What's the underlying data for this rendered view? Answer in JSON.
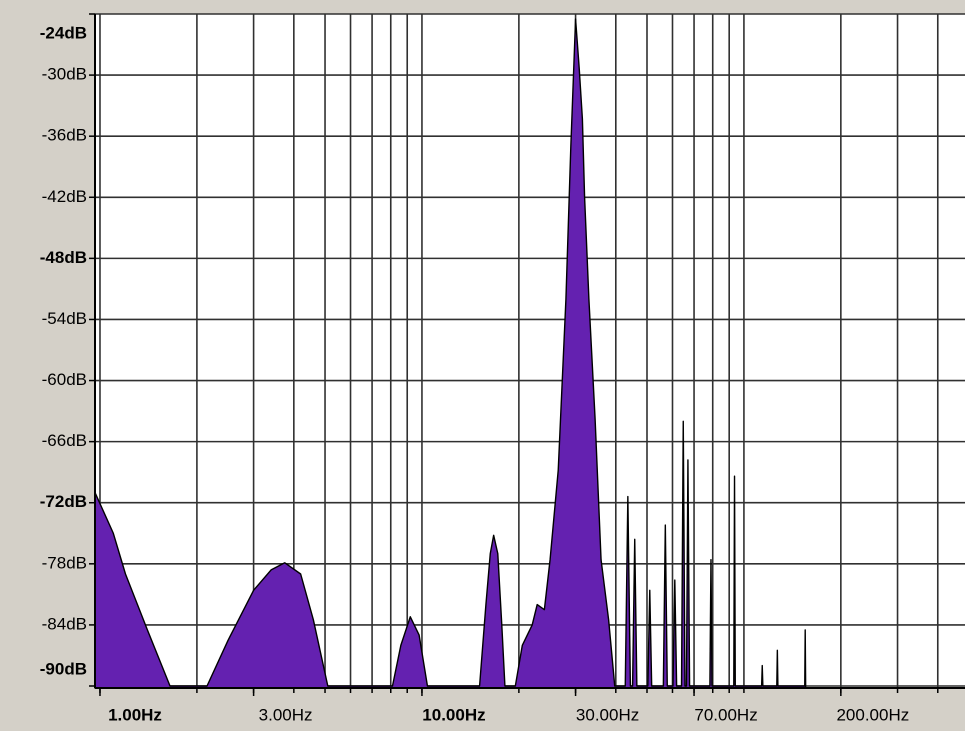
{
  "chart_data": {
    "type": "area",
    "log_x": true,
    "grid": true,
    "color": "#6421b0",
    "xlim": [
      0.965,
      486
    ],
    "ylim": [
      -90,
      -24
    ],
    "xticks": [
      {
        "value": 1,
        "label": "1.00Hz",
        "bold": true
      },
      {
        "value": 3,
        "label": "3.00Hz"
      },
      {
        "value": 10,
        "label": "10.00Hz",
        "bold": true
      },
      {
        "value": 30,
        "label": "30.00Hz"
      },
      {
        "value": 70,
        "label": "70.00Hz"
      },
      {
        "value": 200,
        "label": "200.00Hz"
      }
    ],
    "xgrid": [
      1,
      2,
      3,
      4,
      5,
      6,
      7,
      8,
      9,
      10,
      20,
      30,
      40,
      50,
      60,
      70,
      80,
      90,
      100,
      200,
      300,
      400
    ],
    "yticks": [
      {
        "value": -24,
        "label": "-24dB",
        "bold": true
      },
      {
        "value": -30,
        "label": "-30dB"
      },
      {
        "value": -36,
        "label": "-36dB"
      },
      {
        "value": -42,
        "label": "-42dB"
      },
      {
        "value": -48,
        "label": "-48dB",
        "bold": true
      },
      {
        "value": -54,
        "label": "-54dB"
      },
      {
        "value": -60,
        "label": "-60dB"
      },
      {
        "value": -66,
        "label": "-66dB"
      },
      {
        "value": -72,
        "label": "-72dB",
        "bold": true
      },
      {
        "value": -78,
        "label": "-78dB"
      },
      {
        "value": -84,
        "label": "-84dB"
      },
      {
        "value": -90,
        "label": "-90dB",
        "bold": true
      }
    ],
    "x": [
      0.965,
      1.1,
      1.2,
      1.4,
      1.65,
      2.15,
      2.5,
      3.0,
      3.4,
      3.75,
      4.2,
      4.6,
      5.1,
      8.1,
      8.6,
      9.2,
      9.8,
      10.4,
      15.1,
      15.8,
      16.3,
      16.7,
      17.2,
      17.7,
      18.1,
      19.5,
      20.5,
      22,
      22.8,
      24,
      25,
      26.5,
      28,
      29,
      30,
      30.8,
      31.5,
      32,
      33,
      34.5,
      36,
      38,
      39.7,
      42.8,
      43.6,
      44.4,
      45.1,
      45.8,
      46.5,
      50.3,
      51,
      51.7,
      56.2,
      57,
      57.8,
      60.2,
      61,
      61.8,
      64,
      64.8,
      65.6,
      66.3,
      67,
      67.8,
      78.4,
      79,
      79.6,
      93,
      93.5,
      94,
      113.5,
      114,
      114.5,
      126.5,
      127,
      127.5,
      154.5,
      155,
      155.5
    ],
    "values": [
      -71,
      -75,
      -79,
      -84.4,
      -90,
      -90,
      -85.5,
      -80.6,
      -78.6,
      -77.9,
      -79,
      -83.5,
      -90,
      -90,
      -86,
      -83.2,
      -85,
      -90,
      -90,
      -82,
      -77,
      -75.2,
      -77,
      -84,
      -90,
      -90,
      -86,
      -84,
      -82,
      -82.5,
      -77.6,
      -68.8,
      -52,
      -37,
      -24.5,
      -29.4,
      -34.3,
      -42,
      -52,
      -63.8,
      -77.6,
      -83.5,
      -90,
      -90,
      -71.4,
      -90,
      -90,
      -75.6,
      -90,
      -90,
      -80.6,
      -90,
      -90,
      -74.2,
      -90,
      -90,
      -79.6,
      -90,
      -90,
      -64,
      -90,
      -90,
      -67.8,
      -90,
      -90,
      -77.6,
      -90,
      -90,
      -69.4,
      -90,
      -90,
      -88,
      -90,
      -90,
      -86.5,
      -90,
      -90,
      -84.5,
      -90
    ]
  }
}
